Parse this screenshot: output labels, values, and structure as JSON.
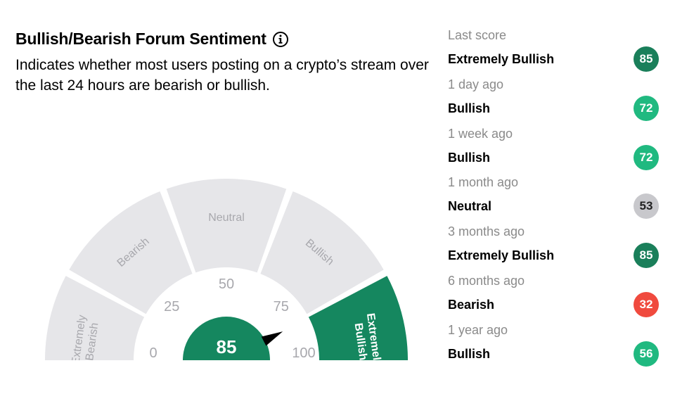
{
  "header": {
    "title": "Bullish/Bearish Forum Sentiment",
    "subtitle": "Indicates whether most users posting on a crypto’s stream over the last 24 hours are bearish or bullish."
  },
  "gauge": {
    "score": 85,
    "segments": [
      {
        "label_lines": [
          "Extremely",
          "Bearish"
        ],
        "active": false
      },
      {
        "label_lines": [
          "Bearish"
        ],
        "active": false
      },
      {
        "label_lines": [
          "Neutral"
        ],
        "active": false
      },
      {
        "label_lines": [
          "Bullish"
        ],
        "active": false
      },
      {
        "label_lines": [
          "Extremely",
          "Bullish"
        ],
        "active": true
      }
    ],
    "scale_labels": [
      "0",
      "25",
      "50",
      "75",
      "100"
    ],
    "colors": {
      "inactive": "#e6e6e9",
      "inactive_text": "#a8a8ad",
      "active": "#15875f",
      "needle": "#000000"
    }
  },
  "history": [
    {
      "when": "Last score",
      "label": "Extremely Bullish",
      "score": "85",
      "color": "#1a7f5a"
    },
    {
      "when": "1 day ago",
      "label": "Bullish",
      "score": "72",
      "color": "#20b980"
    },
    {
      "when": "1 week ago",
      "label": "Bullish",
      "score": "72",
      "color": "#20b980"
    },
    {
      "when": "1 month ago",
      "label": "Neutral",
      "score": "53",
      "color": "#c8c8cc"
    },
    {
      "when": "3 months ago",
      "label": "Extremely Bullish",
      "score": "85",
      "color": "#1a7f5a"
    },
    {
      "when": "6 months ago",
      "label": "Bearish",
      "score": "32",
      "color": "#f04a3e"
    },
    {
      "when": "1 year ago",
      "label": "Bullish",
      "score": "56",
      "color": "#20b980"
    }
  ]
}
